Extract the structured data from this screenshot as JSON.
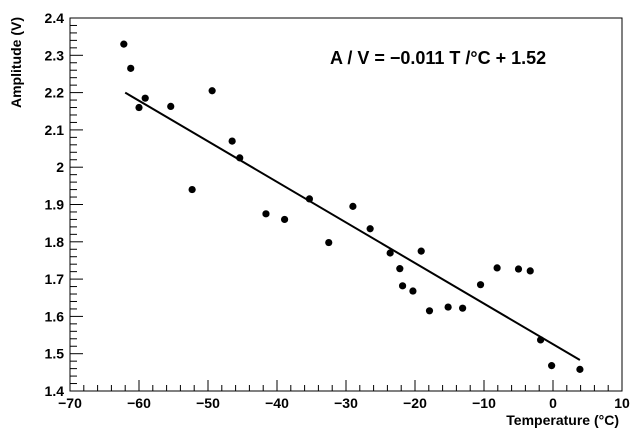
{
  "chart_data": {
    "type": "scatter",
    "xlabel": "Temperature (°C)",
    "ylabel": "Amplitude (V)",
    "xlim": [
      -70,
      10
    ],
    "ylim": [
      1.4,
      2.4
    ],
    "x_ticks": [
      -70,
      -60,
      -50,
      -40,
      -30,
      -20,
      -10,
      0,
      10
    ],
    "x_tick_labels": [
      "−70",
      "−60",
      "−50",
      "−40",
      "−30",
      "−20",
      "−10",
      "0",
      "10"
    ],
    "y_ticks": [
      1.4,
      1.5,
      1.6,
      1.7,
      1.8,
      1.9,
      2.0,
      2.1,
      2.2,
      2.3,
      2.4
    ],
    "y_tick_labels": [
      "1.4",
      "1.5",
      "1.6",
      "1.7",
      "1.8",
      "1.9",
      "2",
      "2.1",
      "2.2",
      "2.3",
      "2.4"
    ],
    "grid": false,
    "annotation": "A / V = −0.011 T /°C + 1.52",
    "points": [
      {
        "x": -62.2,
        "y": 2.33
      },
      {
        "x": -61.2,
        "y": 2.265
      },
      {
        "x": -60.0,
        "y": 2.16
      },
      {
        "x": -59.1,
        "y": 2.185
      },
      {
        "x": -55.4,
        "y": 2.163
      },
      {
        "x": -52.3,
        "y": 1.94
      },
      {
        "x": -49.4,
        "y": 2.205
      },
      {
        "x": -46.5,
        "y": 2.07
      },
      {
        "x": -45.4,
        "y": 2.025
      },
      {
        "x": -41.6,
        "y": 1.875
      },
      {
        "x": -38.9,
        "y": 1.86
      },
      {
        "x": -35.3,
        "y": 1.915
      },
      {
        "x": -32.5,
        "y": 1.798
      },
      {
        "x": -29.0,
        "y": 1.895
      },
      {
        "x": -26.5,
        "y": 1.835
      },
      {
        "x": -23.6,
        "y": 1.77
      },
      {
        "x": -22.2,
        "y": 1.728
      },
      {
        "x": -21.8,
        "y": 1.682
      },
      {
        "x": -20.3,
        "y": 1.668
      },
      {
        "x": -19.1,
        "y": 1.775
      },
      {
        "x": -17.9,
        "y": 1.615
      },
      {
        "x": -15.2,
        "y": 1.625
      },
      {
        "x": -13.1,
        "y": 1.622
      },
      {
        "x": -10.5,
        "y": 1.685
      },
      {
        "x": -8.1,
        "y": 1.73
      },
      {
        "x": -5.0,
        "y": 1.727
      },
      {
        "x": -3.3,
        "y": 1.722
      },
      {
        "x": -1.8,
        "y": 1.537
      },
      {
        "x": -0.2,
        "y": 1.468
      },
      {
        "x": 3.9,
        "y": 1.458
      }
    ],
    "fit_line": {
      "x": [
        -62,
        3.9
      ],
      "y": [
        2.2,
        1.483
      ]
    }
  }
}
